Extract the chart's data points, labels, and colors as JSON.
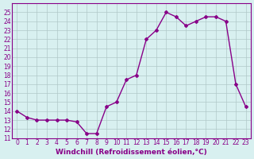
{
  "x": [
    0,
    1,
    2,
    3,
    4,
    5,
    6,
    7,
    8,
    9,
    10,
    11,
    12,
    13,
    14,
    15,
    16,
    17,
    18,
    19,
    20,
    21,
    22,
    23
  ],
  "y": [
    14.0,
    13.3,
    13.0,
    13.0,
    13.0,
    13.0,
    12.8,
    11.5,
    11.5,
    14.5,
    15.0,
    17.5,
    18.0,
    22.0,
    23.0,
    25.0,
    24.5,
    23.5,
    24.0,
    24.5,
    24.5,
    24.0,
    17.0,
    14.5
  ],
  "line_color": "#880088",
  "marker": "D",
  "markersize": 2,
  "bg_color": "#d8f0f0",
  "grid_color": "#b0c8c8",
  "xlabel": "Windchill (Refroidissement éolien,°C)",
  "ylabel": "",
  "title": "",
  "xlim": [
    -0.5,
    23.5
  ],
  "ylim": [
    11,
    26
  ],
  "yticks": [
    11,
    12,
    13,
    14,
    15,
    16,
    17,
    18,
    19,
    20,
    21,
    22,
    23,
    24,
    25
  ],
  "xticks": [
    0,
    1,
    2,
    3,
    4,
    5,
    6,
    7,
    8,
    9,
    10,
    11,
    12,
    13,
    14,
    15,
    16,
    17,
    18,
    19,
    20,
    21,
    22,
    23
  ],
  "tick_fontsize": 5.5,
  "xlabel_fontsize": 6.5,
  "linewidth": 1.0
}
